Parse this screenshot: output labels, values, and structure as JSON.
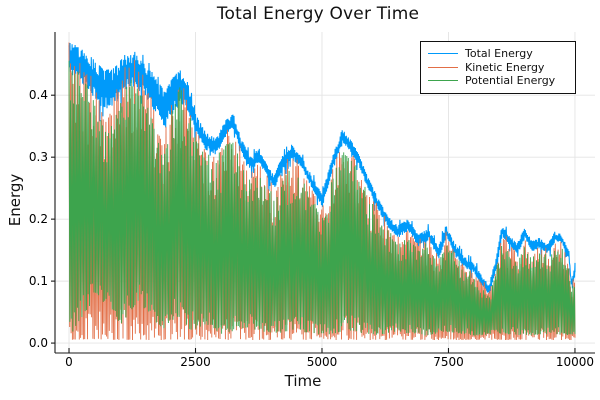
{
  "chart_data": {
    "type": "line",
    "title": "Total Energy Over Time",
    "xlabel": "Time",
    "ylabel": "Energy",
    "xlim": [
      -277,
      10396
    ],
    "ylim": [
      -0.016,
      0.502
    ],
    "xticks": [
      0,
      2500,
      5000,
      7500,
      10000
    ],
    "yticks": [
      0.0,
      0.1,
      0.2,
      0.3,
      0.4
    ],
    "grid": true,
    "grid_color": "#e4e4e4",
    "axis_color": "#1a1a1a",
    "legend": {
      "position": "top-right",
      "entries": [
        {
          "label": "Total Energy",
          "color": "#009AFA"
        },
        {
          "label": "Kinetic Energy",
          "color": "#E26E46"
        },
        {
          "label": "Potential Energy",
          "color": "#3DA44D"
        }
      ]
    },
    "encoding": "rapidly oscillating series captured as piecewise-linear min/max envelopes over time t",
    "envelope_t": [
      0,
      150,
      400,
      700,
      900,
      1100,
      1300,
      1500,
      1700,
      1900,
      2050,
      2200,
      2350,
      2500,
      2700,
      2900,
      3100,
      3250,
      3400,
      3600,
      3750,
      3900,
      4050,
      4200,
      4400,
      4600,
      4800,
      5000,
      5200,
      5400,
      5550,
      5700,
      5900,
      6100,
      6300,
      6500,
      6700,
      6900,
      7100,
      7300,
      7450,
      7600,
      7800,
      8000,
      8150,
      8300,
      8450,
      8550,
      8700,
      8850,
      9000,
      9150,
      9300,
      9450,
      9600,
      9750,
      9870,
      9930,
      10000
    ],
    "series": [
      {
        "name": "Total Energy",
        "color": "#009AFA",
        "top": [
          0.485,
          0.48,
          0.465,
          0.44,
          0.445,
          0.465,
          0.47,
          0.455,
          0.43,
          0.405,
          0.43,
          0.44,
          0.42,
          0.37,
          0.34,
          0.33,
          0.36,
          0.37,
          0.33,
          0.3,
          0.315,
          0.29,
          0.27,
          0.3,
          0.32,
          0.3,
          0.27,
          0.24,
          0.3,
          0.345,
          0.33,
          0.31,
          0.27,
          0.235,
          0.205,
          0.19,
          0.2,
          0.175,
          0.185,
          0.155,
          0.19,
          0.165,
          0.14,
          0.13,
          0.11,
          0.095,
          0.14,
          0.19,
          0.175,
          0.16,
          0.185,
          0.165,
          0.17,
          0.16,
          0.18,
          0.175,
          0.15,
          0.1,
          0.13
        ],
        "band_t": [
          0,
          600,
          1200,
          1800,
          2300,
          2600,
          3000,
          4000,
          6000,
          8000,
          10000
        ],
        "band_v": [
          0.05,
          0.065,
          0.055,
          0.06,
          0.05,
          0.03,
          0.025,
          0.022,
          0.02,
          0.018,
          0.016
        ]
      },
      {
        "name": "Kinetic Energy",
        "color": "#E26E46",
        "top": [
          0.478,
          0.465,
          0.43,
          0.375,
          0.39,
          0.445,
          0.45,
          0.42,
          0.37,
          0.335,
          0.4,
          0.425,
          0.4,
          0.345,
          0.315,
          0.305,
          0.335,
          0.345,
          0.305,
          0.275,
          0.29,
          0.265,
          0.245,
          0.275,
          0.3,
          0.28,
          0.25,
          0.215,
          0.28,
          0.325,
          0.315,
          0.29,
          0.25,
          0.215,
          0.19,
          0.172,
          0.183,
          0.16,
          0.168,
          0.14,
          0.173,
          0.15,
          0.125,
          0.115,
          0.098,
          0.082,
          0.125,
          0.173,
          0.16,
          0.145,
          0.168,
          0.15,
          0.155,
          0.145,
          0.163,
          0.155,
          0.135,
          0.09,
          0.118
        ],
        "bottom_t": [
          0,
          10000
        ],
        "bottom_v": [
          0.005,
          0.005
        ]
      },
      {
        "name": "Potential Energy",
        "color": "#3DA44D",
        "top": [
          0.47,
          0.45,
          0.41,
          0.345,
          0.36,
          0.415,
          0.43,
          0.4,
          0.34,
          0.305,
          0.38,
          0.415,
          0.38,
          0.33,
          0.3,
          0.29,
          0.32,
          0.33,
          0.29,
          0.26,
          0.275,
          0.25,
          0.23,
          0.26,
          0.285,
          0.265,
          0.235,
          0.2,
          0.265,
          0.31,
          0.3,
          0.275,
          0.235,
          0.2,
          0.175,
          0.16,
          0.17,
          0.15,
          0.155,
          0.13,
          0.16,
          0.14,
          0.115,
          0.105,
          0.09,
          0.075,
          0.115,
          0.16,
          0.15,
          0.135,
          0.155,
          0.14,
          0.145,
          0.135,
          0.15,
          0.145,
          0.125,
          0.085,
          0.11
        ],
        "bottom_t": [
          0,
          300,
          550,
          800,
          1000,
          1200,
          1400,
          1600,
          1900,
          2100,
          2400,
          2700,
          3000,
          3500,
          4000,
          4500,
          5000,
          5500,
          6000,
          6500,
          7000,
          7500,
          8000,
          8500,
          9000,
          9500,
          10000
        ],
        "bottom_v": [
          0.01,
          0.05,
          0.075,
          0.055,
          0.03,
          0.05,
          0.065,
          0.04,
          0.02,
          0.045,
          0.02,
          0.03,
          0.015,
          0.025,
          0.015,
          0.02,
          0.012,
          0.02,
          0.012,
          0.018,
          0.012,
          0.018,
          0.012,
          0.015,
          0.012,
          0.015,
          0.012
        ]
      }
    ]
  }
}
